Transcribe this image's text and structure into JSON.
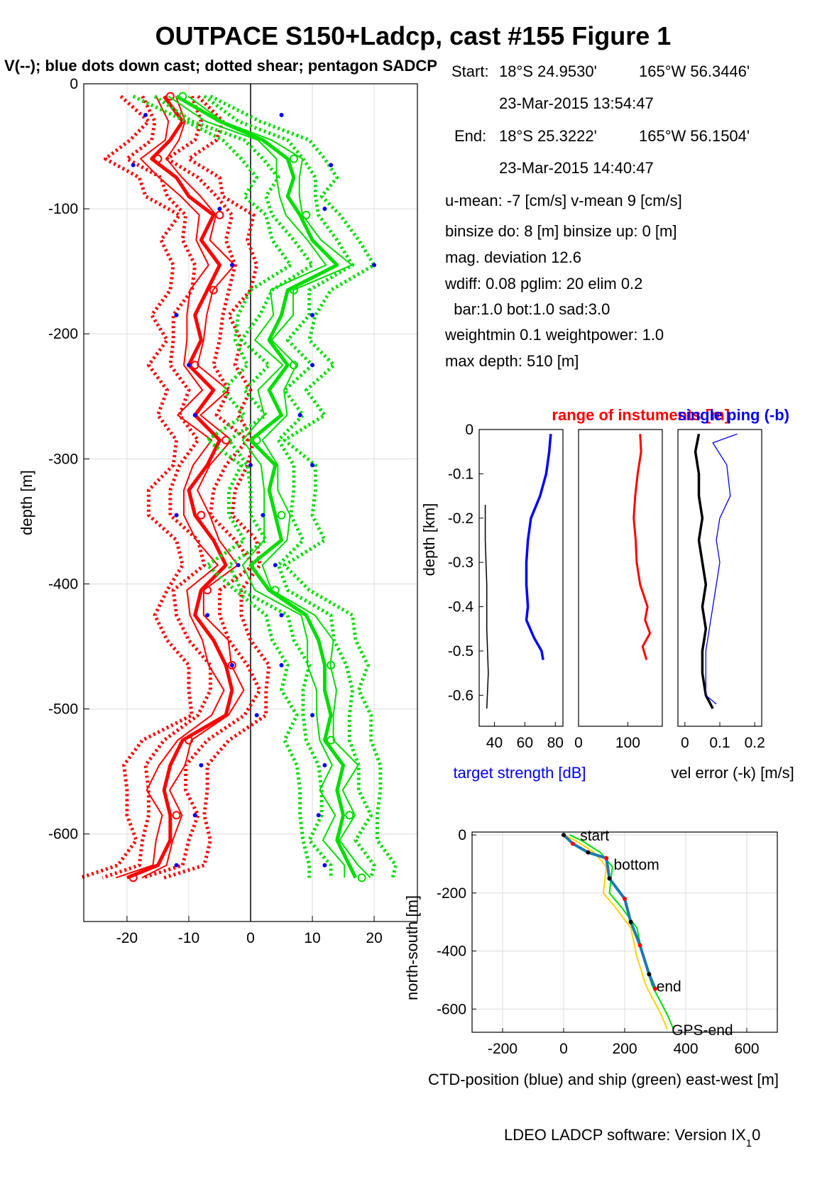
{
  "figure": {
    "title": "OUTPACE S150+Ladcp, cast #155  Figure 1",
    "subtitle": "V(--); blue dots down cast; dotted shear; pentagon SADCP",
    "footer_main": "LDEO LADCP software: Version IX",
    "footer_sub": "1",
    "footer_tail": "0"
  },
  "info": {
    "start_label": "Start:",
    "start_lat": "18°S 24.9530'",
    "start_lon": "165°W 56.3446'",
    "start_time": "23-Mar-2015 13:54:47",
    "end_label": "End:",
    "end_lat": "18°S 25.3222'",
    "end_lon": "165°W 56.1504'",
    "end_time": "23-Mar-2015 14:40:47",
    "umean": "u-mean:  -7 [cm/s]    v-mean   9 [cm/s]",
    "binsize": "binsize do: 8 [m]  binsize up:  0 [m]",
    "magdev": "mag. deviation 12.6",
    "wdiff": "wdiff: 0.08  pglim: 20  elim 0.2",
    "bar": "  bar:1.0 bot:1.0 sad:3.0",
    "weight": "weightmin 0.1  weightpower: 1.0",
    "maxdepth": "max depth: 510 [m]"
  },
  "colors": {
    "u": "#ff0000",
    "v": "#00dd00",
    "dots": "#0000ff",
    "black": "#000000",
    "grid": "#dcdcdc"
  },
  "chart_data": [
    {
      "type": "line",
      "id": "profile",
      "ylabel": "depth [m]",
      "xlim": [
        -27,
        27
      ],
      "ylim": [
        -670,
        0
      ],
      "xticks": [
        -20,
        -10,
        0,
        10,
        20
      ],
      "yticks": [
        0,
        -100,
        -200,
        -300,
        -400,
        -500,
        -600
      ],
      "grid": true,
      "series": [
        {
          "depth": [
            -10,
            -30,
            -45,
            -60,
            -75,
            -90,
            -105,
            -125,
            -145,
            -165,
            -185,
            -205,
            -225,
            -245,
            -265,
            -285,
            -305,
            -325,
            -345,
            -365,
            -385,
            -405,
            -425,
            -445,
            -465,
            -485,
            -505,
            -525,
            -545,
            -565,
            -585,
            -605,
            -625,
            -635
          ],
          "u": [
            -14,
            -11,
            -13,
            -16,
            -12,
            -10,
            -6,
            -8,
            -5,
            -7,
            -9,
            -8,
            -10,
            -6,
            -9,
            -5,
            -7,
            -10,
            -9,
            -6,
            -4,
            -8,
            -9,
            -6,
            -4,
            -3,
            -4,
            -11,
            -13,
            -14,
            -13,
            -13,
            -15,
            -20
          ],
          "v": [
            -12,
            -5,
            2,
            6,
            7,
            6,
            8,
            10,
            14,
            6,
            5,
            3,
            6,
            3,
            5,
            0,
            4,
            3,
            4,
            5,
            0,
            3,
            9,
            11,
            12,
            12,
            13,
            12,
            15,
            14,
            15,
            14,
            16,
            17
          ]
        }
      ],
      "down_cast_dots": {
        "depth": [
          -25,
          -65,
          -100,
          -145,
          -185,
          -225,
          -265,
          -305,
          -345,
          -385,
          -425,
          -465,
          -505,
          -545,
          -585,
          -625
        ],
        "u": [
          -17,
          -19,
          -5,
          -3,
          -12,
          -10,
          -9,
          0,
          -12,
          -2,
          -7,
          -3,
          1,
          -8,
          -9,
          -12
        ],
        "v": [
          5,
          13,
          12,
          20,
          10,
          10,
          8,
          10,
          2,
          4,
          5,
          5,
          10,
          12,
          11,
          12
        ]
      }
    },
    {
      "type": "line",
      "id": "target-strength",
      "ylabel": "depth [km]",
      "xlabel": "target strength [dB]",
      "title_left": "range of instuments [m]",
      "title_right": "single ping (-b)",
      "xlim": [
        30,
        85
      ],
      "ylim": [
        -0.67,
        0
      ],
      "xticks": [
        40,
        60,
        80
      ],
      "yticks": [
        0,
        -0.1,
        -0.2,
        -0.3,
        -0.4,
        -0.5,
        -0.6
      ],
      "series": [
        {
          "name": "ts",
          "depth": [
            -0.01,
            -0.05,
            -0.1,
            -0.15,
            -0.2,
            -0.25,
            -0.3,
            -0.35,
            -0.4,
            -0.43,
            -0.47,
            -0.5,
            -0.52
          ],
          "value": [
            77,
            76,
            74,
            70,
            64,
            62,
            61,
            61,
            62,
            61,
            66,
            71,
            72
          ]
        },
        {
          "name": "range",
          "depth": [
            -0.17,
            -0.25,
            -0.35,
            -0.45,
            -0.55,
            -0.63
          ],
          "value": [
            34,
            34,
            35,
            35,
            36,
            35
          ]
        }
      ]
    },
    {
      "type": "line",
      "id": "range",
      "xlim": [
        0,
        170
      ],
      "ylim": [
        -0.67,
        0
      ],
      "xticks": [
        0,
        100
      ],
      "series": [
        {
          "name": "range",
          "depth": [
            -0.01,
            -0.05,
            -0.1,
            -0.15,
            -0.2,
            -0.25,
            -0.3,
            -0.35,
            -0.4,
            -0.43,
            -0.46,
            -0.49,
            -0.52
          ],
          "value": [
            125,
            127,
            120,
            115,
            112,
            116,
            118,
            125,
            140,
            135,
            145,
            130,
            138
          ]
        }
      ]
    },
    {
      "type": "line",
      "id": "vel-error",
      "xlabel": "vel error (-k) [m/s]",
      "xlim": [
        -0.02,
        0.22
      ],
      "ylim": [
        -0.67,
        0
      ],
      "xticks": [
        0,
        0.1,
        0.2
      ],
      "series": [
        {
          "name": "black",
          "depth": [
            -0.01,
            -0.05,
            -0.1,
            -0.15,
            -0.2,
            -0.25,
            -0.3,
            -0.35,
            -0.4,
            -0.45,
            -0.5,
            -0.55,
            -0.6,
            -0.63
          ],
          "value": [
            0.04,
            0.03,
            0.04,
            0.04,
            0.05,
            0.04,
            0.05,
            0.06,
            0.05,
            0.06,
            0.05,
            0.05,
            0.06,
            0.08
          ]
        },
        {
          "name": "single",
          "depth": [
            -0.01,
            -0.03,
            -0.08,
            -0.15,
            -0.2,
            -0.25,
            -0.3,
            -0.35,
            -0.4,
            -0.45,
            -0.5,
            -0.55,
            -0.6,
            -0.62
          ],
          "value": [
            0.15,
            0.08,
            0.12,
            0.13,
            0.1,
            0.09,
            0.1,
            0.09,
            0.08,
            0.07,
            0.06,
            0.06,
            0.06,
            0.09
          ]
        }
      ]
    },
    {
      "type": "line",
      "id": "position",
      "ylabel": "north-south [m]",
      "xlabel": "CTD-position (blue) and ship (green) east-west [m]",
      "xlim": [
        -300,
        700
      ],
      "ylim": [
        -680,
        10
      ],
      "xticks": [
        -200,
        0,
        200,
        400,
        600
      ],
      "yticks": [
        0,
        -200,
        -400,
        -600
      ],
      "series": [
        {
          "name": "ctd",
          "x": [
            0,
            30,
            80,
            140,
            150,
            200,
            220,
            250,
            280,
            300
          ],
          "y": [
            0,
            -30,
            -60,
            -80,
            -150,
            -220,
            -300,
            -380,
            -480,
            -530
          ]
        },
        {
          "name": "ship",
          "x": [
            0,
            40,
            100,
            140,
            130,
            170,
            220,
            240,
            270,
            320,
            340
          ],
          "y": [
            0,
            -20,
            -60,
            -110,
            -200,
            -250,
            -320,
            -420,
            -520,
            -620,
            -670
          ]
        }
      ],
      "labels": [
        {
          "text": "start",
          "x": 40,
          "y": 0
        },
        {
          "text": "bottom",
          "x": 150,
          "y": -100
        },
        {
          "text": "end",
          "x": 290,
          "y": -520
        },
        {
          "text": "GPS-end",
          "x": 340,
          "y": -670
        }
      ]
    }
  ]
}
